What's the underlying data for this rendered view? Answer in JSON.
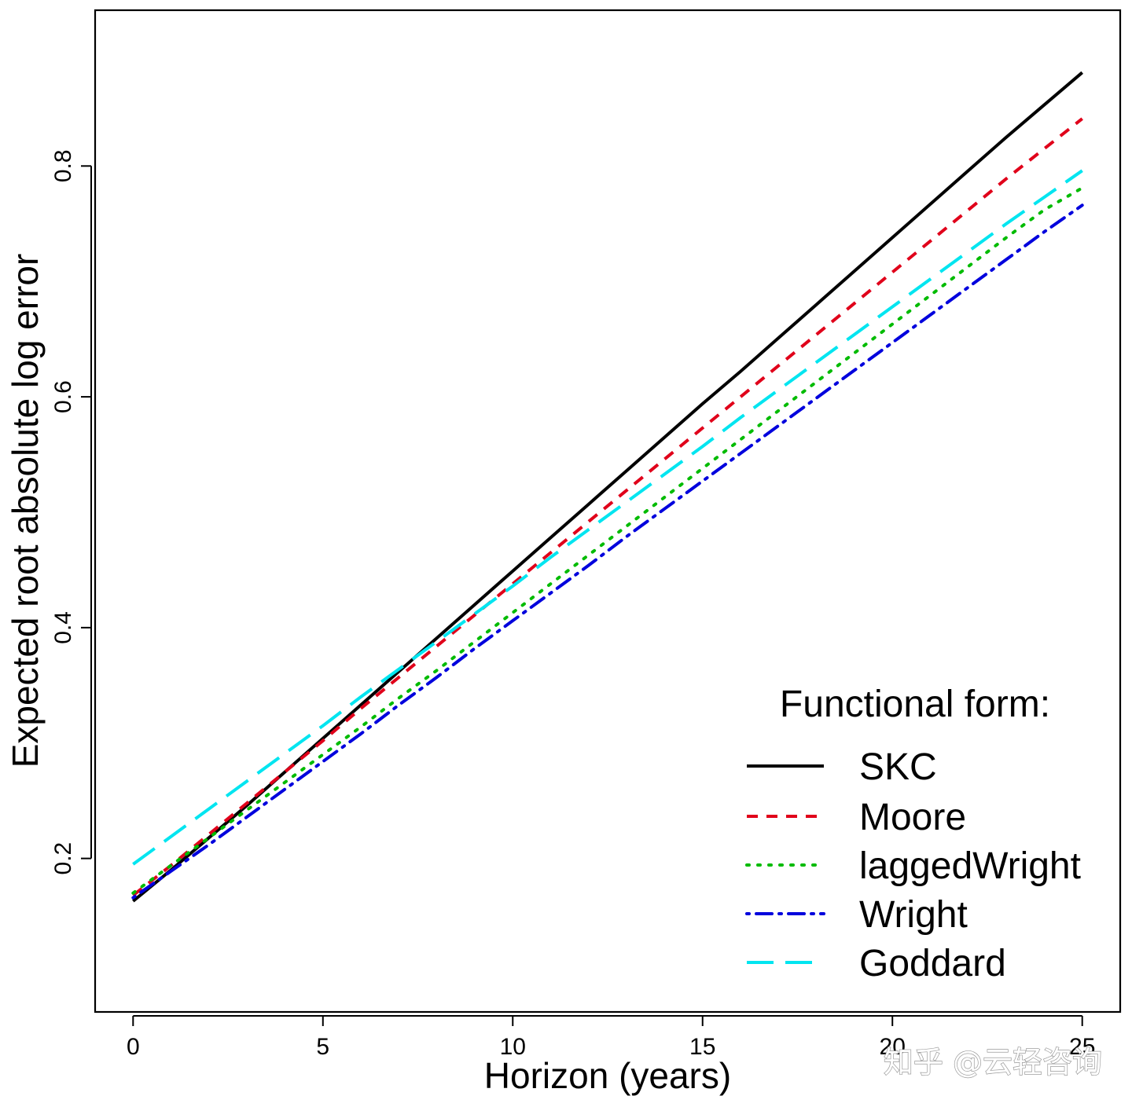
{
  "chart_data": {
    "type": "line",
    "title": "",
    "xlabel": "Horizon (years)",
    "ylabel": "Expected root absolute log error",
    "xlim": [
      -1,
      26
    ],
    "ylim": [
      0.067,
      0.935
    ],
    "x_ticks": [
      "0",
      "5",
      "10",
      "15",
      "20",
      "25"
    ],
    "y_ticks": [
      "0.2",
      "0.4",
      "0.6",
      "0.8"
    ],
    "grid": false,
    "legend": {
      "title": "Functional form:",
      "placement": "bottom-right"
    },
    "series": [
      {
        "name": "SKC",
        "color": "#000000",
        "dash": "solid",
        "x": [
          0,
          1,
          2,
          3,
          4,
          5,
          6,
          7,
          8,
          9,
          10,
          11,
          12,
          13,
          14,
          15,
          16,
          17,
          18,
          19,
          20,
          21,
          22,
          23,
          24,
          25
        ],
        "y": [
          0.163,
          0.19,
          0.218,
          0.246,
          0.275,
          0.304,
          0.333,
          0.362,
          0.391,
          0.42,
          0.449,
          0.478,
          0.507,
          0.536,
          0.565,
          0.594,
          0.622,
          0.651,
          0.68,
          0.709,
          0.738,
          0.767,
          0.796,
          0.825,
          0.853,
          0.881
        ]
      },
      {
        "name": "Moore",
        "color": "#e0001a",
        "dash": "short-dash",
        "x": [
          0,
          1,
          2,
          3,
          4,
          5,
          6,
          7,
          8,
          9,
          10,
          11,
          12,
          13,
          14,
          15,
          16,
          17,
          18,
          19,
          20,
          21,
          22,
          23,
          24,
          25
        ],
        "y": [
          0.168,
          0.194,
          0.221,
          0.248,
          0.275,
          0.302,
          0.33,
          0.357,
          0.384,
          0.411,
          0.438,
          0.465,
          0.492,
          0.519,
          0.546,
          0.573,
          0.6,
          0.627,
          0.654,
          0.681,
          0.708,
          0.735,
          0.762,
          0.789,
          0.815,
          0.841
        ]
      },
      {
        "name": "laggedWright",
        "color": "#00bb00",
        "dash": "dotted",
        "x": [
          0,
          1,
          2,
          3,
          4,
          5,
          6,
          7,
          8,
          9,
          10,
          11,
          12,
          13,
          14,
          15,
          16,
          17,
          18,
          19,
          20,
          21,
          22,
          23,
          24,
          25
        ],
        "y": [
          0.17,
          0.194,
          0.218,
          0.242,
          0.266,
          0.29,
          0.314,
          0.339,
          0.363,
          0.388,
          0.413,
          0.438,
          0.463,
          0.488,
          0.513,
          0.538,
          0.563,
          0.588,
          0.613,
          0.638,
          0.663,
          0.688,
          0.713,
          0.738,
          0.762,
          0.781
        ]
      },
      {
        "name": "Wright",
        "color": "#0000dd",
        "dash": "dash-dot",
        "x": [
          0,
          1,
          2,
          3,
          4,
          5,
          6,
          7,
          8,
          9,
          10,
          11,
          12,
          13,
          14,
          15,
          16,
          17,
          18,
          19,
          20,
          21,
          22,
          23,
          24,
          25
        ],
        "y": [
          0.166,
          0.189,
          0.212,
          0.236,
          0.26,
          0.284,
          0.308,
          0.333,
          0.357,
          0.382,
          0.406,
          0.43,
          0.454,
          0.479,
          0.503,
          0.527,
          0.551,
          0.575,
          0.599,
          0.623,
          0.647,
          0.671,
          0.695,
          0.719,
          0.743,
          0.766
        ]
      },
      {
        "name": "Goddard",
        "color": "#00e5f0",
        "dash": "long-dash",
        "x": [
          0,
          1,
          2,
          3,
          4,
          5,
          6,
          7,
          8,
          9,
          10,
          11,
          12,
          13,
          14,
          15,
          16,
          17,
          18,
          19,
          20,
          21,
          22,
          23,
          24,
          25
        ],
        "y": [
          0.195,
          0.219,
          0.243,
          0.267,
          0.291,
          0.315,
          0.34,
          0.364,
          0.388,
          0.412,
          0.436,
          0.461,
          0.485,
          0.509,
          0.533,
          0.557,
          0.582,
          0.606,
          0.63,
          0.654,
          0.678,
          0.702,
          0.726,
          0.75,
          0.773,
          0.796
        ]
      }
    ]
  },
  "watermark": {
    "text": "知乎 @云轻咨询"
  }
}
